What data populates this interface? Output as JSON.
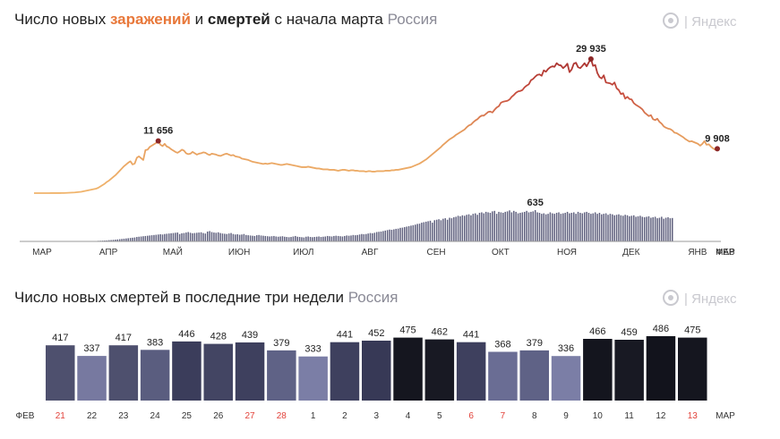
{
  "header1": {
    "part1": "Число новых ",
    "infections_word": "заражений",
    "part2": " и ",
    "deaths_word": "смертей",
    "part3": " с начала марта",
    "region": "Россия"
  },
  "header2": {
    "title": "Число новых смертей в последние три недели",
    "region": "Россия"
  },
  "brand": {
    "text": "Яндекс",
    "separator": "|"
  },
  "colors": {
    "infections_low": "#f0b46c",
    "infections_high": "#b83a3a",
    "deaths_bar": "#5e5f7d",
    "peak_dot": "#8b2626",
    "weekend": "#e2423a"
  },
  "chart_data": [
    {
      "type": "line",
      "series": [
        {
          "name": "заражений",
          "x_start": "2020-03-01",
          "step": "day",
          "values": [
            2,
            2,
            2,
            3,
            3,
            4,
            5,
            6,
            7,
            8,
            10,
            12,
            15,
            20,
            30,
            50,
            80,
            100,
            120,
            150,
            200,
            250,
            300,
            400,
            500,
            600,
            700,
            800,
            900,
            1000,
            1200,
            1500,
            1800,
            2100,
            2500,
            2800,
            3200,
            3600,
            4000,
            4500,
            5000,
            5500,
            6000,
            6400,
            6800,
            7100,
            6400,
            6600,
            7900,
            8200,
            7800,
            7400,
            9600,
            9700,
            10300,
            10600,
            10900,
            11200,
            11656,
            10800,
            10500,
            11000,
            10400,
            10200,
            9800,
            9500,
            9200,
            9000,
            9300,
            9700,
            9500,
            8900,
            8700,
            8800,
            9200,
            8900,
            8600,
            8800,
            8900,
            9100,
            9000,
            8700,
            8500,
            8800,
            8700,
            8600,
            8400,
            8300,
            8500,
            8700,
            8800,
            8600,
            8400,
            8500,
            8200,
            8100,
            8000,
            7700,
            7600,
            7500,
            7400,
            7200,
            7000,
            6900,
            6800,
            6700,
            6600,
            6500,
            6600,
            6500,
            6600,
            6700,
            6600,
            6500,
            6400,
            6300,
            6300,
            6400,
            6500,
            6400,
            6300,
            6200,
            6100,
            6000,
            5900,
            5800,
            5800,
            5800,
            5900,
            5800,
            5700,
            5600,
            5500,
            5500,
            5400,
            5300,
            5300,
            5300,
            5200,
            5200,
            5200,
            5100,
            5000,
            5100,
            5200,
            5200,
            5100,
            5000,
            5100,
            5100,
            5000,
            5000,
            4900,
            4900,
            4900,
            4800,
            4900,
            4900,
            4800,
            4800,
            4900,
            4900,
            4900,
            4900,
            5000,
            5000,
            5000,
            5100,
            5100,
            5200,
            5200,
            5300,
            5400,
            5500,
            5600,
            5700,
            5800,
            6000,
            6200,
            6400,
            6600,
            6900,
            7200,
            7500,
            7900,
            8300,
            8700,
            9100,
            9500,
            9900,
            10300,
            10800,
            11200,
            11600,
            12000,
            12300,
            12600,
            13000,
            13300,
            13600,
            13900,
            14200,
            14700,
            15100,
            15300,
            15800,
            16200,
            16500,
            17000,
            17300,
            17300,
            17700,
            18100,
            18200,
            18000,
            18600,
            19100,
            19400,
            20200,
            20400,
            20500,
            20600,
            20900,
            21500,
            21900,
            22400,
            22700,
            22800,
            23000,
            23600,
            24000,
            24300,
            25200,
            25500,
            26000,
            26400,
            26500,
            26200,
            27400,
            27100,
            27700,
            28100,
            28300,
            28200,
            29000,
            28600,
            28500,
            27900,
            28300,
            28900,
            27000,
            27600,
            28900,
            29100,
            28100,
            27900,
            28400,
            29000,
            28300,
            29200,
            29935,
            28400,
            28600,
            26800,
            25900,
            25600,
            26300,
            24700,
            24600,
            24500,
            24200,
            24700,
            23400,
            23000,
            22100,
            22300,
            21100,
            21500,
            21000,
            20900,
            20100,
            19700,
            19400,
            19100,
            18700,
            18000,
            17600,
            17200,
            17400,
            16500,
            16300,
            16600,
            15900,
            15500,
            14900,
            14600,
            14400,
            14300,
            14000,
            13500,
            13400,
            13100,
            12800,
            12500,
            12100,
            11800,
            11500,
            11600,
            11400,
            11200,
            11000,
            10600,
            11000,
            11600,
            10800,
            10900,
            10400,
            10000,
            9700,
            9908
          ]
        }
      ],
      "marker_labels": [
        "11 656",
        "29 935",
        "9 908"
      ],
      "x_tick_labels": [
        "МАР",
        "АПР",
        "МАЙ",
        "ИЮН",
        "ИЮЛ",
        "АВГ",
        "СЕН",
        "ОКТ",
        "НОЯ",
        "ДЕК",
        "ЯНВ",
        "ФЕВ",
        "МАР"
      ],
      "xlabel": "",
      "ylabel": ""
    },
    {
      "type": "bar",
      "series": [
        {
          "name": "смертей",
          "x_start": "2020-03-01",
          "step": "day",
          "values": [
            0,
            0,
            0,
            0,
            0,
            0,
            0,
            0,
            0,
            0,
            0,
            0,
            0,
            0,
            0,
            0,
            1,
            1,
            1,
            1,
            1,
            2,
            2,
            3,
            4,
            5,
            6,
            7,
            8,
            9,
            12,
            14,
            16,
            18,
            20,
            25,
            28,
            32,
            36,
            40,
            45,
            50,
            55,
            60,
            65,
            70,
            75,
            80,
            90,
            95,
            100,
            105,
            110,
            115,
            120,
            125,
            130,
            135,
            140,
            145,
            140,
            150,
            155,
            160,
            165,
            170,
            175,
            180,
            150,
            165,
            170,
            180,
            190,
            175,
            165,
            170,
            175,
            180,
            185,
            170,
            160,
            200,
            210,
            190,
            180,
            175,
            185,
            170,
            160,
            155,
            150,
            160,
            170,
            150,
            140,
            145,
            135,
            140,
            150,
            130,
            125,
            120,
            115,
            110,
            125,
            130,
            120,
            115,
            110,
            105,
            100,
            105,
            110,
            100,
            95,
            100,
            105,
            95,
            90,
            85,
            90,
            100,
            110,
            95,
            90,
            85,
            80,
            95,
            100,
            90,
            85,
            90,
            95,
            100,
            90,
            95,
            100,
            110,
            105,
            100,
            110,
            115,
            110,
            105,
            100,
            110,
            120,
            115,
            120,
            130,
            125,
            130,
            140,
            150,
            145,
            150,
            160,
            170,
            165,
            175,
            190,
            195,
            200,
            210,
            220,
            230,
            240,
            235,
            245,
            255,
            260,
            275,
            280,
            290,
            300,
            310,
            320,
            330,
            340,
            355,
            360,
            380,
            390,
            400,
            410,
            420,
            380,
            430,
            440,
            450,
            430,
            460,
            470,
            440,
            480,
            470,
            490,
            500,
            520,
            510,
            530,
            520,
            540,
            550,
            530,
            560,
            570,
            540,
            580,
            590,
            570,
            600,
            590,
            580,
            610,
            620,
            560,
            600,
            590,
            580,
            600,
            610,
            630,
            590,
            620,
            600,
            570,
            580,
            590,
            600,
            620,
            590,
            600,
            610,
            635,
            590,
            580,
            560,
            570,
            550,
            560,
            590,
            570,
            560,
            580,
            590,
            560,
            570,
            580,
            600,
            570,
            580,
            590,
            560,
            600,
            580,
            570,
            590,
            600,
            580,
            560,
            570,
            590,
            560,
            580,
            550,
            560,
            570,
            540,
            560,
            550,
            530,
            540,
            550,
            530,
            520,
            540,
            530,
            510,
            520,
            530,
            500,
            510,
            520,
            500,
            490,
            500,
            510,
            480,
            490,
            500,
            470,
            480,
            500,
            460,
            480,
            490,
            470,
            475
          ]
        }
      ],
      "marker_labels": [
        "635",
        "475"
      ]
    },
    {
      "type": "bar",
      "title": "Число новых смертей в последние три недели",
      "categories": [
        "21",
        "22",
        "23",
        "24",
        "25",
        "26",
        "27",
        "28",
        "1",
        "2",
        "3",
        "4",
        "5",
        "6",
        "7",
        "8",
        "9",
        "10",
        "11",
        "12",
        "13"
      ],
      "weekend": [
        true,
        false,
        false,
        false,
        false,
        false,
        true,
        true,
        false,
        false,
        false,
        false,
        false,
        true,
        true,
        false,
        false,
        false,
        false,
        false,
        true
      ],
      "values": [
        417,
        337,
        417,
        383,
        446,
        428,
        439,
        379,
        333,
        441,
        452,
        475,
        462,
        441,
        368,
        379,
        336,
        466,
        459,
        486,
        475
      ],
      "bar_colors": [
        "#4e506e",
        "#7779a0",
        "#4e506e",
        "#5a5d7f",
        "#3b3d5b",
        "#434563",
        "#3e405e",
        "#5f6286",
        "#7b7ea6",
        "#3e405e",
        "#373956",
        "#15161f",
        "#181923",
        "#3e405e",
        "#6a6d94",
        "#5f6286",
        "#7b7ea6",
        "#14151e",
        "#181923",
        "#12131c",
        "#15161f"
      ],
      "month_start": "ФЕВ",
      "month_end": "МАР"
    }
  ]
}
